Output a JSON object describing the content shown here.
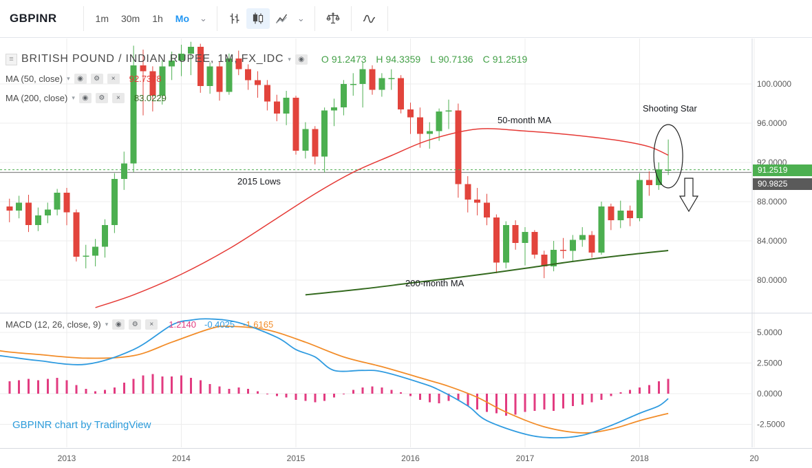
{
  "toolbar": {
    "symbol": "GBPINR",
    "intervals": [
      {
        "label": "1m",
        "active": false
      },
      {
        "label": "30m",
        "active": false
      },
      {
        "label": "1h",
        "active": false
      },
      {
        "label": "Mo",
        "active": true
      }
    ],
    "active_style": "candles"
  },
  "icons": {
    "caret_down": "⌄",
    "menu_caret": "▾",
    "collapse": "≡",
    "eye": "◉",
    "gear": "⚙",
    "close": "×"
  },
  "legend": {
    "title": "BRITISH POUND / INDIAN RUPEE, 1M, FX_IDC",
    "ohlc": [
      {
        "k": "O",
        "v": "91.2473"
      },
      {
        "k": "H",
        "v": "94.3359"
      },
      {
        "k": "L",
        "v": "90.7136"
      },
      {
        "k": "C",
        "v": "91.2519"
      }
    ],
    "indicators": {
      "ma50": {
        "label": "MA (50, close)",
        "value": "92.7378"
      },
      "ma200": {
        "label": "MA (200, close)",
        "value": "83.0229"
      },
      "macd": {
        "label": "MACD (12, 26, close, 9)",
        "histogram_value": "1.2140",
        "macd_value": "-0.4025",
        "signal_value": "-1.6165"
      }
    }
  },
  "badges": {
    "current_price": "91.2519",
    "level_price": "90.9825"
  },
  "annotations": {
    "lows": "2015 Lows",
    "ma50": "50-month MA",
    "ma200": "200-month MA",
    "shooting_star": "Shooting Star"
  },
  "watermark": "GBPINR chart by TradingView",
  "colors": {
    "accent_blue": "#2196f3",
    "up": "#4caf50",
    "down": "#e2443c",
    "ohlc_text": "#43a047",
    "ma50_line": "#e53935",
    "ma200_line": "#33691e",
    "macd_line": "#2f9be0",
    "signal_line": "#f28c28",
    "histogram": "#e23b80",
    "price_badge_bg": "#4caf50",
    "level_badge_bg": "#5a5a5a",
    "grid": "#ececec",
    "axis_text": "#5a5a5a",
    "separator": "#d6d9e0",
    "support_line": "#8a8a8a",
    "watermark": "#2d9cdb",
    "drawing": "#222222"
  },
  "chart_data": {
    "type": "candlestick",
    "title": "BRITISH POUND / INDIAN RUPEE, 1M, FX_IDC",
    "symbol": "GBPINR",
    "interval": "1M",
    "price_axis": {
      "ticks": [
        100,
        96,
        92,
        88,
        84,
        80
      ],
      "tick_decimals": 4
    },
    "time_axis": {
      "years": [
        {
          "label": "2013",
          "month_index": 6
        },
        {
          "label": "2014",
          "month_index": 18
        },
        {
          "label": "2015",
          "month_index": 30
        },
        {
          "label": "2016",
          "month_index": 42
        },
        {
          "label": "2017",
          "month_index": 54
        },
        {
          "label": "2018",
          "month_index": 66
        },
        {
          "label": "20",
          "month_index": 78
        }
      ]
    },
    "levels": {
      "current_price": 91.2519,
      "lows_2015": 90.9825
    },
    "candles": [
      [
        "2012-07",
        87.5,
        88.3,
        85.9,
        87.1
      ],
      [
        "2012-08",
        87.1,
        88.6,
        86.3,
        87.9
      ],
      [
        "2012-09",
        87.9,
        88.7,
        84.9,
        85.6
      ],
      [
        "2012-10",
        85.6,
        87.4,
        85.0,
        86.6
      ],
      [
        "2012-11",
        86.6,
        87.9,
        85.8,
        87.2
      ],
      [
        "2012-12",
        87.2,
        89.3,
        86.6,
        88.9
      ],
      [
        "2013-01",
        88.9,
        89.4,
        85.6,
        86.9
      ],
      [
        "2013-02",
        86.9,
        87.2,
        81.9,
        82.4
      ],
      [
        "2013-03",
        82.4,
        83.6,
        81.2,
        82.5
      ],
      [
        "2013-04",
        82.5,
        84.2,
        81.4,
        83.4
      ],
      [
        "2013-05",
        83.4,
        86.2,
        82.3,
        85.6
      ],
      [
        "2013-06",
        85.6,
        90.9,
        84.8,
        90.3
      ],
      [
        "2013-07",
        90.3,
        93.1,
        89.2,
        91.9
      ],
      [
        "2013-08",
        91.9,
        103.9,
        91.0,
        101.9
      ],
      [
        "2013-09",
        101.9,
        103.5,
        96.8,
        101.3
      ],
      [
        "2013-10",
        101.3,
        101.8,
        97.2,
        98.8
      ],
      [
        "2013-11",
        98.8,
        102.4,
        97.9,
        101.8
      ],
      [
        "2013-12",
        101.8,
        103.3,
        100.4,
        102.4
      ],
      [
        "2014-01",
        102.4,
        104.0,
        100.8,
        103.1
      ],
      [
        "2014-02",
        103.1,
        104.3,
        100.9,
        103.8
      ],
      [
        "2014-03",
        103.8,
        104.1,
        99.1,
        99.8
      ],
      [
        "2014-04",
        99.8,
        102.2,
        99.0,
        101.8
      ],
      [
        "2014-05",
        101.8,
        102.3,
        98.3,
        99.2
      ],
      [
        "2014-06",
        99.2,
        103.1,
        98.9,
        102.6
      ],
      [
        "2014-07",
        102.6,
        103.4,
        100.9,
        101.5
      ],
      [
        "2014-08",
        101.5,
        102.0,
        99.4,
        100.4
      ],
      [
        "2014-09",
        100.4,
        101.3,
        98.6,
        99.9
      ],
      [
        "2014-10",
        99.9,
        100.4,
        97.3,
        98.2
      ],
      [
        "2014-11",
        98.2,
        98.9,
        96.2,
        97.0
      ],
      [
        "2014-12",
        97.0,
        99.3,
        95.8,
        98.6
      ],
      [
        "2015-01",
        98.6,
        98.8,
        92.8,
        93.2
      ],
      [
        "2015-02",
        93.2,
        96.1,
        92.4,
        95.4
      ],
      [
        "2015-03",
        95.4,
        95.7,
        91.8,
        92.6
      ],
      [
        "2015-04",
        92.6,
        97.6,
        90.98,
        97.3
      ],
      [
        "2015-05",
        97.3,
        98.5,
        95.7,
        97.6
      ],
      [
        "2015-06",
        97.6,
        100.4,
        96.8,
        100.0
      ],
      [
        "2015-07",
        100.0,
        101.1,
        98.8,
        100.0
      ],
      [
        "2015-08",
        100.0,
        102.2,
        97.6,
        101.5
      ],
      [
        "2015-09",
        101.5,
        101.9,
        98.9,
        99.4
      ],
      [
        "2015-10",
        99.4,
        101.1,
        98.7,
        100.6
      ],
      [
        "2015-11",
        100.6,
        101.5,
        99.4,
        100.6
      ],
      [
        "2015-12",
        100.6,
        100.9,
        97.0,
        97.4
      ],
      [
        "2016-01",
        97.4,
        98.1,
        94.9,
        96.6
      ],
      [
        "2016-02",
        96.6,
        97.6,
        93.5,
        94.9
      ],
      [
        "2016-03",
        94.9,
        96.1,
        93.4,
        95.2
      ],
      [
        "2016-04",
        95.2,
        97.5,
        94.2,
        97.2
      ],
      [
        "2016-05",
        97.2,
        98.4,
        95.4,
        97.3
      ],
      [
        "2016-06",
        97.3,
        98.0,
        88.4,
        89.8
      ],
      [
        "2016-07",
        89.8,
        90.6,
        86.9,
        88.2
      ],
      [
        "2016-08",
        88.2,
        89.4,
        86.6,
        87.9
      ],
      [
        "2016-09",
        87.9,
        88.8,
        85.6,
        86.4
      ],
      [
        "2016-10",
        86.4,
        86.7,
        80.7,
        81.8
      ],
      [
        "2016-11",
        81.8,
        86.0,
        81.2,
        85.6
      ],
      [
        "2016-12",
        85.6,
        86.1,
        83.1,
        83.8
      ],
      [
        "2017-01",
        83.8,
        85.4,
        81.5,
        84.9
      ],
      [
        "2017-02",
        84.9,
        85.1,
        82.2,
        82.6
      ],
      [
        "2017-03",
        82.6,
        83.0,
        80.2,
        81.4
      ],
      [
        "2017-04",
        81.4,
        84.0,
        80.9,
        83.1
      ],
      [
        "2017-05",
        83.1,
        84.3,
        82.2,
        83.0
      ],
      [
        "2017-06",
        83.0,
        84.6,
        81.9,
        84.1
      ],
      [
        "2017-07",
        84.1,
        85.4,
        83.4,
        84.6
      ],
      [
        "2017-08",
        84.6,
        85.0,
        82.3,
        82.8
      ],
      [
        "2017-09",
        82.8,
        88.0,
        82.6,
        87.5
      ],
      [
        "2017-10",
        87.5,
        87.8,
        85.1,
        86.1
      ],
      [
        "2017-11",
        86.1,
        88.1,
        85.3,
        87.1
      ],
      [
        "2017-12",
        87.1,
        87.6,
        85.5,
        86.3
      ],
      [
        "2018-01",
        86.3,
        90.9,
        86.0,
        90.2
      ],
      [
        "2018-02",
        90.2,
        91.1,
        88.6,
        89.7
      ],
      [
        "2018-03",
        89.7,
        92.0,
        89.2,
        91.3
      ],
      [
        "2018-04",
        91.2473,
        94.3359,
        90.7136,
        91.2519
      ]
    ],
    "ma50_points": [
      [
        9,
        77.2
      ],
      [
        13,
        78.5
      ],
      [
        18,
        80.6
      ],
      [
        23,
        83.2
      ],
      [
        28,
        86.3
      ],
      [
        32,
        88.8
      ],
      [
        36,
        91.0
      ],
      [
        40,
        92.7
      ],
      [
        44,
        94.3
      ],
      [
        49,
        95.4
      ],
      [
        54,
        95.2
      ],
      [
        59,
        94.8
      ],
      [
        64,
        94.2
      ],
      [
        67,
        93.6
      ],
      [
        69,
        92.74
      ]
    ],
    "ma200_points": [
      [
        31,
        78.5
      ],
      [
        37,
        79.1
      ],
      [
        42,
        79.7
      ],
      [
        48,
        80.4
      ],
      [
        54,
        81.2
      ],
      [
        59,
        81.9
      ],
      [
        64,
        82.5
      ],
      [
        69,
        83.02
      ]
    ],
    "macd": {
      "params": [
        12,
        26,
        9
      ],
      "ticks": [
        5,
        2.5,
        0,
        -2.5
      ],
      "histogram": [
        1.0,
        1.1,
        1.2,
        1.1,
        1.2,
        1.3,
        1.1,
        0.7,
        0.4,
        0.2,
        0.3,
        0.5,
        0.9,
        1.2,
        1.5,
        1.6,
        1.4,
        1.4,
        1.5,
        1.3,
        1.1,
        0.8,
        0.6,
        0.4,
        0.5,
        0.4,
        0.2,
        0.0,
        -0.2,
        -0.3,
        -0.5,
        -0.6,
        -0.7,
        -0.6,
        -0.3,
        0.0,
        0.3,
        0.5,
        0.6,
        0.5,
        0.3,
        0.1,
        -0.2,
        -0.5,
        -0.7,
        -0.8,
        -0.6,
        -0.5,
        -1.0,
        -1.3,
        -1.5,
        -1.6,
        -1.8,
        -1.7,
        -1.5,
        -1.4,
        -1.3,
        -1.4,
        -1.2,
        -1.0,
        -0.9,
        -0.7,
        -0.5,
        -0.2,
        0.1,
        0.3,
        0.5,
        0.7,
        1.0,
        1.214
      ],
      "macd_points": [
        [
          -1,
          3.1
        ],
        [
          0,
          3.0
        ],
        [
          3,
          2.7
        ],
        [
          8,
          2.4
        ],
        [
          13,
          3.6
        ],
        [
          17,
          5.6
        ],
        [
          19,
          6.0
        ],
        [
          21,
          6.1
        ],
        [
          24,
          5.8
        ],
        [
          28,
          4.6
        ],
        [
          30,
          3.6
        ],
        [
          32,
          3.0
        ],
        [
          34,
          1.9
        ],
        [
          37,
          1.9
        ],
        [
          39,
          1.8
        ],
        [
          43,
          0.9
        ],
        [
          45,
          0.3
        ],
        [
          48,
          -1.0
        ],
        [
          50,
          -2.2
        ],
        [
          54,
          -3.3
        ],
        [
          57,
          -3.6
        ],
        [
          60,
          -3.4
        ],
        [
          63,
          -2.6
        ],
        [
          66,
          -1.6
        ],
        [
          68,
          -1.0
        ],
        [
          69,
          -0.4025
        ]
      ],
      "signal_points": [
        [
          -1,
          3.5
        ],
        [
          0,
          3.4
        ],
        [
          3,
          3.2
        ],
        [
          8,
          2.9
        ],
        [
          13,
          3.1
        ],
        [
          17,
          4.2
        ],
        [
          21,
          5.3
        ],
        [
          23,
          5.5
        ],
        [
          27,
          5.2
        ],
        [
          31,
          4.2
        ],
        [
          35,
          3.0
        ],
        [
          39,
          2.2
        ],
        [
          43,
          1.3
        ],
        [
          46,
          0.6
        ],
        [
          49,
          -0.3
        ],
        [
          52,
          -1.5
        ],
        [
          56,
          -2.7
        ],
        [
          60,
          -3.2
        ],
        [
          63,
          -2.9
        ],
        [
          66,
          -2.2
        ],
        [
          68,
          -1.8
        ],
        [
          69,
          -1.6165
        ]
      ]
    }
  }
}
